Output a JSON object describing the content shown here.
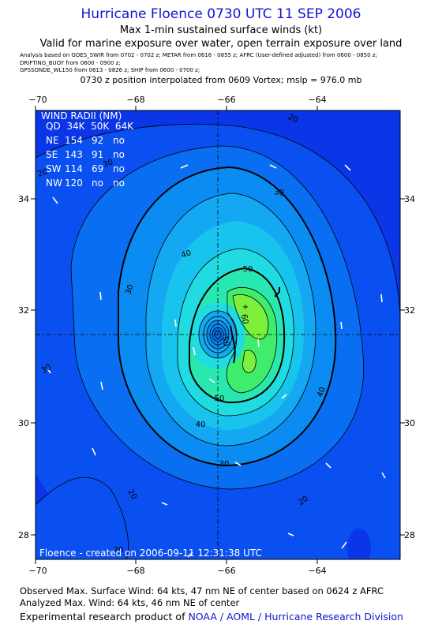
{
  "header": {
    "title": "Hurricane Floence 0730 UTC 11 SEP 2006",
    "subtitle1": "Max 1-min sustained surface winds (kt)",
    "subtitle2": "Valid for marine exposure over water, open terrain exposure over land",
    "analysis_line1": "Analysis based on  GOES_SWIR from 0702 - 0702 z;  METAR from 0616 - 0855 z;  AFRC (User-defined adjusted) from 0600 - 0850 z;",
    "analysis_line2": "DRIFTING_BUOY from 0600 - 0900 z;",
    "analysis_line3": "GPSSONDE_WL150 from 0613 - 0826 z;  SHIP from 0600 - 0700 z;",
    "position_line": "0730 z position interpolated from 0609 Vortex; mslp = 976.0 mb"
  },
  "axes": {
    "x_ticks": [
      "−70",
      "−68",
      "−66",
      "−64"
    ],
    "y_ticks": [
      "34",
      "32",
      "30",
      "28"
    ]
  },
  "wind_radii": {
    "title": "WIND RADII (NM)",
    "header": "QD  34K  50K  64K",
    "rows": [
      {
        "qd": "NE",
        "r34": "154",
        "r50": "92",
        "r64": "no"
      },
      {
        "qd": "SE",
        "r34": "143",
        "r50": "91",
        "r64": "no"
      },
      {
        "qd": "SW",
        "r34": "114",
        "r50": "69",
        "r64": "no"
      },
      {
        "qd": "NW",
        "r34": "120",
        "r50": "no",
        "r64": "no"
      }
    ]
  },
  "contour_labels": [
    "20",
    "20",
    "30",
    "40",
    "50",
    "30",
    "40",
    "50",
    "60",
    "30",
    "40",
    "30",
    "20",
    "20",
    "50",
    "20",
    "30"
  ],
  "map_credit": "Floence - created on 2006-09-11 12:31:38 UTC",
  "footer": {
    "observed": "Observed Max. Surface Wind: 64 kts, 47 nm NE of center based on 0624 z AFRC",
    "analyzed": "Analyzed Max. Wind: 64 kts, 46 nm NE of center",
    "product_prefix": "Experimental research product of ",
    "product_org": "NOAA / AOML / Hurricane Research Division"
  },
  "colors": {
    "title": "#1414cc",
    "c0": "#0a36e8",
    "c1": "#0a50f0",
    "c2": "#0a6ef2",
    "c3": "#0a8cf2",
    "c4": "#14a8f2",
    "c5": "#18c4ee",
    "c6": "#20dce0",
    "c7": "#28e8b0",
    "c8": "#40ec6c",
    "c9": "#7cf03c",
    "c10": "#b8f028"
  }
}
